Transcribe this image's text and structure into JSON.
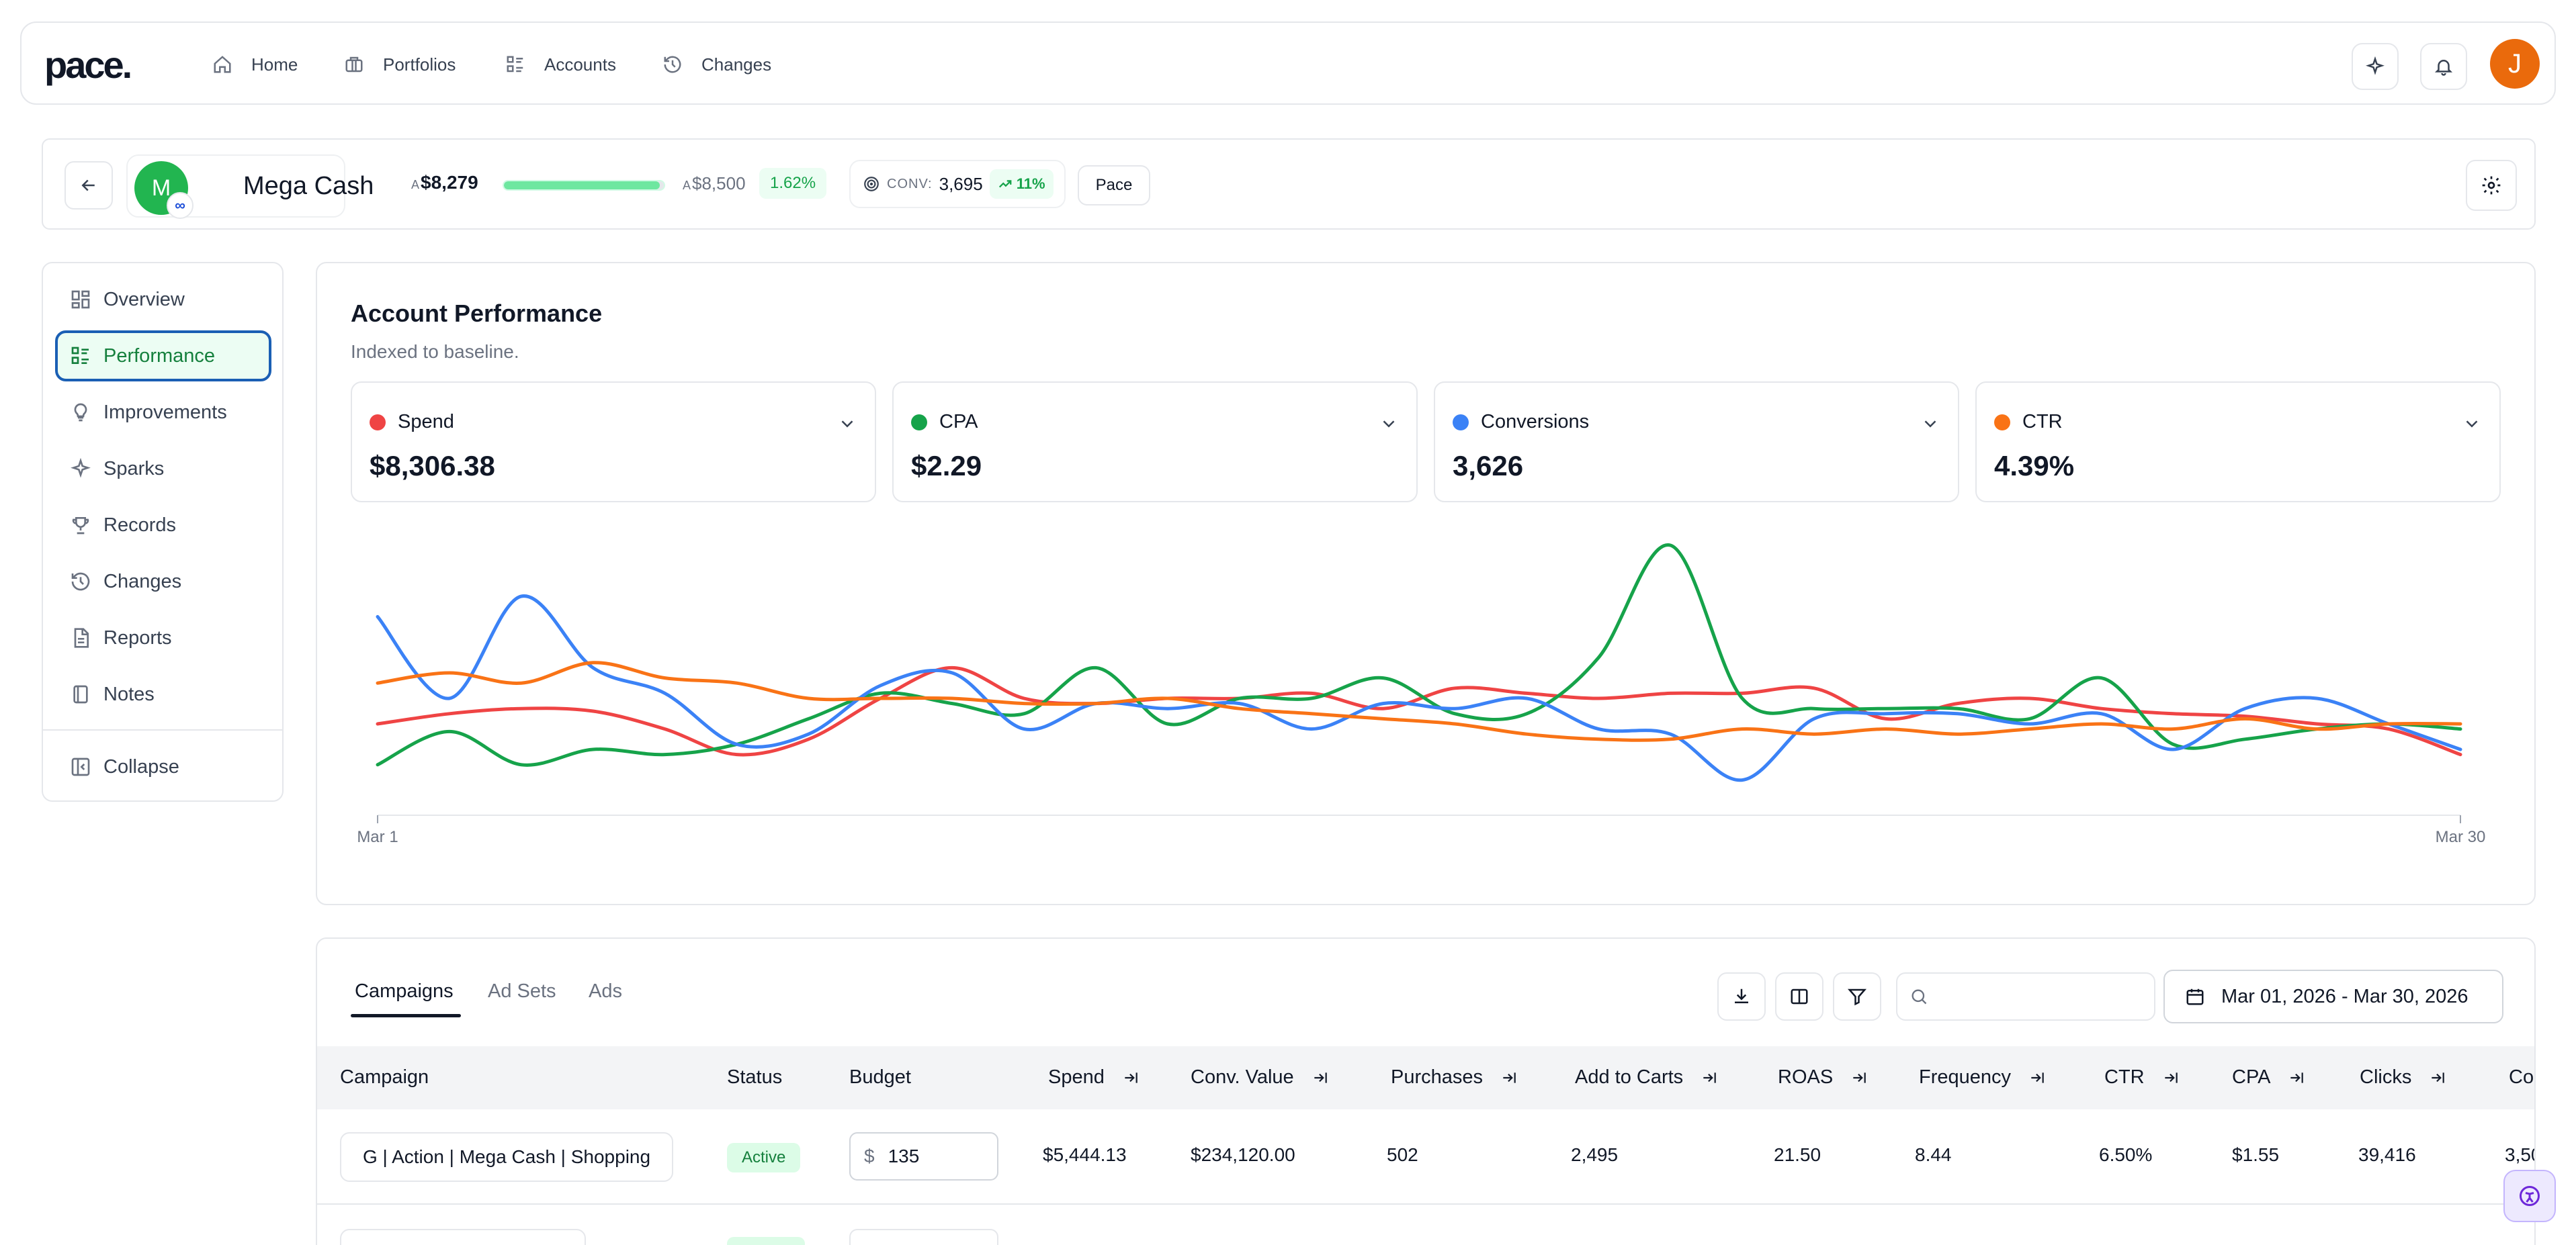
{
  "brand": {
    "logo": "pace."
  },
  "nav": {
    "items": [
      {
        "label": "Home",
        "icon": "home-icon"
      },
      {
        "label": "Portfolios",
        "icon": "briefcase-icon"
      },
      {
        "label": "Accounts",
        "icon": "list-icon"
      },
      {
        "label": "Changes",
        "icon": "history-icon"
      }
    ],
    "avatar_initial": "J"
  },
  "account": {
    "avatar_initial": "M",
    "name": "Mega Cash",
    "platform_badge": "∞",
    "spend_currency": "A",
    "spend": "$8,279",
    "budget_currency": "A",
    "budget": "$8,500",
    "progress_fraction": 0.974,
    "pace_pct": "1.62%",
    "conv_label": "CONV:",
    "conv_value": "3,695",
    "conv_trend": "11%",
    "pace_button": "Pace"
  },
  "sidebar": {
    "items": [
      {
        "label": "Overview",
        "icon": "grid-icon"
      },
      {
        "label": "Performance",
        "icon": "list-icon",
        "active": true
      },
      {
        "label": "Improvements",
        "icon": "lightbulb-icon"
      },
      {
        "label": "Sparks",
        "icon": "sparkle-icon"
      },
      {
        "label": "Records",
        "icon": "trophy-icon"
      },
      {
        "label": "Changes",
        "icon": "history-icon"
      },
      {
        "label": "Reports",
        "icon": "document-icon"
      },
      {
        "label": "Notes",
        "icon": "notebook-icon"
      }
    ],
    "collapse_label": "Collapse"
  },
  "performance": {
    "title": "Account Performance",
    "subtitle": "Indexed to baseline.",
    "metrics": [
      {
        "name": "Spend",
        "value": "$8,306.38",
        "color": "#ef4444"
      },
      {
        "name": "CPA",
        "value": "$2.29",
        "color": "#16a34a"
      },
      {
        "name": "Conversions",
        "value": "3,626",
        "color": "#3b82f6"
      },
      {
        "name": "CTR",
        "value": "4.39%",
        "color": "#f97316"
      }
    ]
  },
  "chart_data": {
    "type": "line",
    "x": [
      "Mar 1",
      "Mar 2",
      "Mar 3",
      "Mar 4",
      "Mar 5",
      "Mar 6",
      "Mar 7",
      "Mar 8",
      "Mar 9",
      "Mar 10",
      "Mar 11",
      "Mar 12",
      "Mar 13",
      "Mar 14",
      "Mar 15",
      "Mar 16",
      "Mar 17",
      "Mar 18",
      "Mar 19",
      "Mar 20",
      "Mar 21",
      "Mar 22",
      "Mar 23",
      "Mar 24",
      "Mar 25",
      "Mar 26",
      "Mar 27",
      "Mar 28",
      "Mar 29",
      "Mar 30"
    ],
    "tick_labels": [
      "Mar 1",
      "Mar 30"
    ],
    "ylim": [
      0,
      100
    ],
    "grid": false,
    "legend": "none",
    "series": [
      {
        "name": "Spend",
        "color": "#ef4444",
        "values": [
          30,
          34,
          36,
          35,
          28,
          18,
          24,
          40,
          52,
          40,
          38,
          40,
          40,
          42,
          36,
          44,
          42,
          40,
          42,
          42,
          44,
          32,
          38,
          40,
          36,
          34,
          33,
          30,
          28,
          18
        ]
      },
      {
        "name": "CPA",
        "color": "#16a34a",
        "values": [
          14,
          27,
          14,
          20,
          18,
          22,
          32,
          42,
          38,
          34,
          52,
          30,
          40,
          40,
          48,
          34,
          34,
          56,
          100,
          40,
          36,
          36,
          36,
          32,
          48,
          22,
          24,
          28,
          30,
          28
        ]
      },
      {
        "name": "Conversions",
        "color": "#3b82f6",
        "values": [
          72,
          40,
          80,
          52,
          42,
          22,
          26,
          45,
          50,
          28,
          38,
          36,
          38,
          28,
          38,
          36,
          40,
          28,
          26,
          8,
          32,
          34,
          34,
          30,
          34,
          20,
          36,
          40,
          30,
          20
        ]
      },
      {
        "name": "CTR",
        "color": "#f97316",
        "values": [
          46,
          50,
          46,
          54,
          48,
          46,
          40,
          40,
          40,
          38,
          38,
          40,
          36,
          34,
          32,
          30,
          26,
          24,
          24,
          28,
          26,
          28,
          26,
          28,
          30,
          28,
          32,
          28,
          30,
          30
        ]
      }
    ]
  },
  "table": {
    "tabs": [
      {
        "label": "Campaigns",
        "active": true
      },
      {
        "label": "Ad Sets",
        "active": false
      },
      {
        "label": "Ads",
        "active": false
      }
    ],
    "search_placeholder": "",
    "date_range": "Mar 01, 2026 - Mar 30, 2026",
    "columns": [
      "Campaign",
      "Status",
      "Budget",
      "Spend",
      "Conv. Value",
      "Purchases",
      "Add to Carts",
      "ROAS",
      "Frequency",
      "CTR",
      "CPA",
      "Clicks",
      "Co"
    ],
    "rows": [
      {
        "campaign": "G | Action | Mega Cash | Shopping",
        "status": "Active",
        "budget_currency": "$",
        "budget": "135",
        "spend": "$5,444.13",
        "conv_value": "$234,120.00",
        "purchases": "502",
        "add_to_carts": "2,495",
        "roas": "21.50",
        "frequency": "8.44",
        "ctr": "6.50%",
        "cpa": "$1.55",
        "clicks": "39,416",
        "conv": "3,50"
      }
    ]
  }
}
